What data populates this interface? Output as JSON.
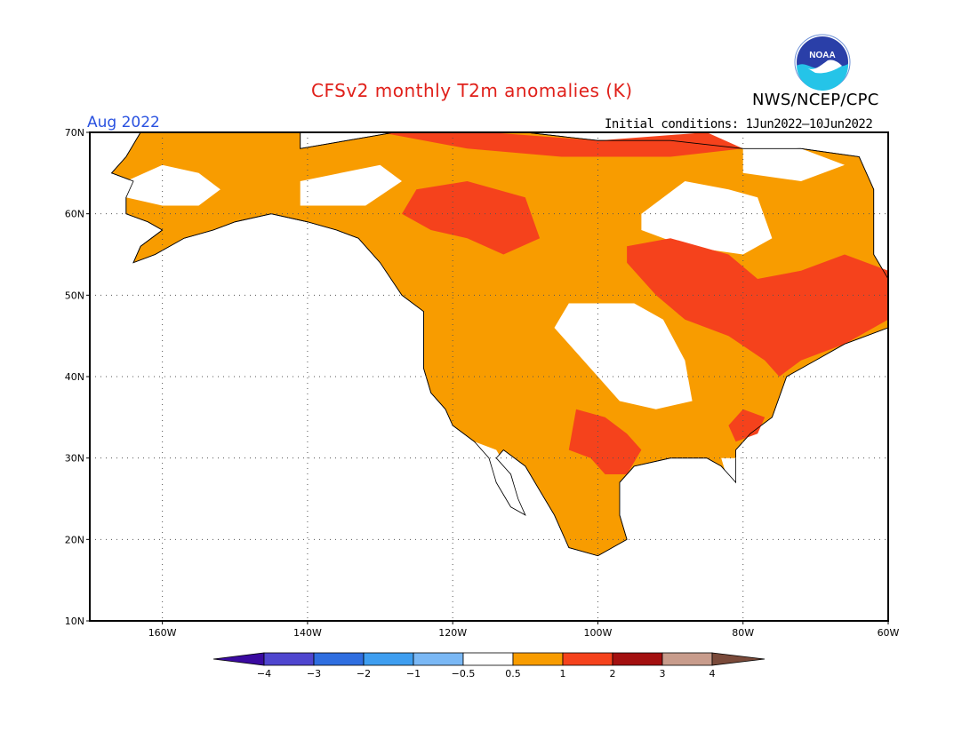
{
  "title": "CFSv2 monthly T2m anomalies (K)",
  "agency": "NWS/NCEP/CPC",
  "logo": {
    "icon": "noaa-logo",
    "text": "NOAA"
  },
  "valid_month": "Aug 2022",
  "initial_conditions": "Initial conditions: 1Jun2022–10Jun2022",
  "map": {
    "lon_range": [
      -170,
      -60
    ],
    "lat_range": [
      10,
      70
    ],
    "lon_ticks": [
      {
        "value": -160,
        "label": "160W"
      },
      {
        "value": -140,
        "label": "140W"
      },
      {
        "value": -120,
        "label": "120W"
      },
      {
        "value": -100,
        "label": "100W"
      },
      {
        "value": -80,
        "label": "80W"
      },
      {
        "value": -60,
        "label": "60W"
      }
    ],
    "lat_ticks": [
      {
        "value": 10,
        "label": "10N"
      },
      {
        "value": 20,
        "label": "20N"
      },
      {
        "value": 30,
        "label": "30N"
      },
      {
        "value": 40,
        "label": "40N"
      },
      {
        "value": 50,
        "label": "50N"
      },
      {
        "value": 60,
        "label": "60N"
      },
      {
        "value": 70,
        "label": "70N"
      }
    ],
    "grid": "dotted",
    "colors": {
      "0.5-1": "#f89c00",
      "1-2": "#f5421c",
      "coast": "#000000"
    },
    "anomaly_regions": [
      {
        "level": "0.5-1",
        "name": "alaska-yukon",
        "poly": [
          [
            -163,
            70
          ],
          [
            -141,
            70
          ],
          [
            -141,
            68
          ],
          [
            -128,
            70
          ],
          [
            -110,
            70
          ],
          [
            -100,
            69
          ],
          [
            -90,
            69
          ],
          [
            -80,
            68
          ],
          [
            -72,
            68
          ],
          [
            -64,
            67
          ],
          [
            -62,
            63
          ],
          [
            -62,
            55
          ],
          [
            -60,
            52
          ],
          [
            -60,
            46
          ],
          [
            -66,
            44
          ],
          [
            -70,
            42
          ],
          [
            -74,
            40
          ],
          [
            -76,
            35
          ],
          [
            -79,
            33
          ],
          [
            -81,
            31
          ],
          [
            -81,
            27
          ],
          [
            -83,
            29
          ],
          [
            -85,
            30
          ],
          [
            -88,
            30
          ],
          [
            -90,
            30
          ],
          [
            -95,
            29
          ],
          [
            -97,
            27
          ],
          [
            -97,
            23
          ],
          [
            -96,
            20
          ],
          [
            -100,
            18
          ],
          [
            -104,
            19
          ],
          [
            -106,
            23
          ],
          [
            -108,
            26
          ],
          [
            -110,
            29
          ],
          [
            -113,
            31
          ],
          [
            -114,
            30
          ],
          [
            -112,
            28
          ],
          [
            -111,
            25
          ],
          [
            -110,
            23
          ],
          [
            -112,
            24
          ],
          [
            -114,
            27
          ],
          [
            -115,
            30
          ],
          [
            -117,
            32
          ],
          [
            -120,
            34
          ],
          [
            -121,
            36
          ],
          [
            -123,
            38
          ],
          [
            -124,
            41
          ],
          [
            -124,
            46
          ],
          [
            -124,
            48
          ],
          [
            -127,
            50
          ],
          [
            -130,
            54
          ],
          [
            -133,
            57
          ],
          [
            -136,
            58
          ],
          [
            -140,
            59
          ],
          [
            -145,
            60
          ],
          [
            -150,
            59
          ],
          [
            -153,
            58
          ],
          [
            -157,
            57
          ],
          [
            -161,
            55
          ],
          [
            -164,
            54
          ],
          [
            -163,
            56
          ],
          [
            -160,
            58
          ],
          [
            -162,
            59
          ],
          [
            -165,
            60
          ],
          [
            -165,
            62
          ],
          [
            -164,
            64
          ],
          [
            -167,
            65
          ],
          [
            -165,
            67
          ],
          [
            -163,
            70
          ]
        ]
      }
    ],
    "hot_regions": [
      {
        "level": "1-2",
        "name": "northern-canada",
        "poly": [
          [
            -125,
            63
          ],
          [
            -118,
            64
          ],
          [
            -110,
            62
          ],
          [
            -108,
            57
          ],
          [
            -113,
            55
          ],
          [
            -118,
            57
          ],
          [
            -123,
            58
          ],
          [
            -127,
            60
          ],
          [
            -125,
            63
          ]
        ]
      },
      {
        "level": "1-2",
        "name": "hudson-quebec",
        "poly": [
          [
            -96,
            56
          ],
          [
            -90,
            57
          ],
          [
            -82,
            55
          ],
          [
            -78,
            52
          ],
          [
            -72,
            53
          ],
          [
            -66,
            55
          ],
          [
            -60,
            53
          ],
          [
            -60,
            47
          ],
          [
            -66,
            44
          ],
          [
            -72,
            42
          ],
          [
            -75,
            40
          ],
          [
            -77,
            42
          ],
          [
            -82,
            45
          ],
          [
            -88,
            47
          ],
          [
            -92,
            50
          ],
          [
            -96,
            54
          ],
          [
            -96,
            56
          ]
        ]
      },
      {
        "level": "1-2",
        "name": "texas-oklahoma",
        "poly": [
          [
            -103,
            36
          ],
          [
            -99,
            35
          ],
          [
            -96,
            33
          ],
          [
            -94,
            31
          ],
          [
            -96,
            28
          ],
          [
            -99,
            28
          ],
          [
            -101,
            30
          ],
          [
            -104,
            31
          ],
          [
            -103,
            36
          ]
        ]
      },
      {
        "level": "1-2",
        "name": "arctic-coast",
        "poly": [
          [
            -130,
            70
          ],
          [
            -115,
            70
          ],
          [
            -100,
            69
          ],
          [
            -85,
            70
          ],
          [
            -80,
            68
          ],
          [
            -90,
            67
          ],
          [
            -105,
            67
          ],
          [
            -118,
            68
          ],
          [
            -130,
            70
          ]
        ]
      },
      {
        "level": "1-2",
        "name": "carolinas",
        "poly": [
          [
            -80,
            36
          ],
          [
            -77,
            35
          ],
          [
            -78,
            33
          ],
          [
            -81,
            32
          ],
          [
            -82,
            34
          ],
          [
            -80,
            36
          ]
        ]
      }
    ],
    "white_holes": [
      {
        "name": "northern-plains",
        "poly": [
          [
            -104,
            49
          ],
          [
            -95,
            49
          ],
          [
            -91,
            47
          ],
          [
            -88,
            42
          ],
          [
            -87,
            37
          ],
          [
            -92,
            36
          ],
          [
            -97,
            37
          ],
          [
            -100,
            40
          ],
          [
            -103,
            43
          ],
          [
            -106,
            46
          ],
          [
            -104,
            49
          ]
        ]
      },
      {
        "name": "hudson-bay",
        "poly": [
          [
            -94,
            60
          ],
          [
            -88,
            64
          ],
          [
            -82,
            63
          ],
          [
            -78,
            62
          ],
          [
            -76,
            57
          ],
          [
            -80,
            55
          ],
          [
            -88,
            56
          ],
          [
            -94,
            58
          ],
          [
            -94,
            60
          ]
        ]
      },
      {
        "name": "alaska-west",
        "poly": [
          [
            -165,
            64
          ],
          [
            -160,
            66
          ],
          [
            -155,
            65
          ],
          [
            -152,
            63
          ],
          [
            -155,
            61
          ],
          [
            -160,
            61
          ],
          [
            -165,
            62
          ],
          [
            -165,
            64
          ]
        ]
      },
      {
        "name": "yukon",
        "poly": [
          [
            -141,
            64
          ],
          [
            -130,
            66
          ],
          [
            -127,
            64
          ],
          [
            -132,
            61
          ],
          [
            -141,
            61
          ],
          [
            -141,
            64
          ]
        ]
      },
      {
        "name": "baffin",
        "poly": [
          [
            -80,
            69
          ],
          [
            -72,
            68
          ],
          [
            -66,
            66
          ],
          [
            -72,
            64
          ],
          [
            -80,
            65
          ],
          [
            -80,
            69
          ]
        ]
      },
      {
        "name": "florida",
        "poly": [
          [
            -83,
            30
          ],
          [
            -81,
            30
          ],
          [
            -80,
            26
          ],
          [
            -81,
            25
          ],
          [
            -82,
            27
          ],
          [
            -83,
            30
          ]
        ]
      },
      {
        "name": "baja",
        "poly": [
          [
            -117,
            32
          ],
          [
            -114,
            31
          ],
          [
            -112,
            28
          ],
          [
            -110,
            23
          ],
          [
            -112,
            24
          ],
          [
            -114,
            27
          ],
          [
            -116,
            30
          ],
          [
            -117,
            32
          ]
        ]
      }
    ]
  },
  "colorbar": {
    "bins": [
      "#3a0aa0",
      "#4f46cf",
      "#2f6ee0",
      "#3e9ef0",
      "#7ab8f5",
      "#ffffff",
      "#f89c00",
      "#f5421c",
      "#a31010",
      "#c89c8c",
      "#7a4a3a"
    ],
    "labels": [
      "−4",
      "−3",
      "−2",
      "−1",
      "−0.5",
      "0.5",
      "1",
      "2",
      "3",
      "4"
    ]
  }
}
